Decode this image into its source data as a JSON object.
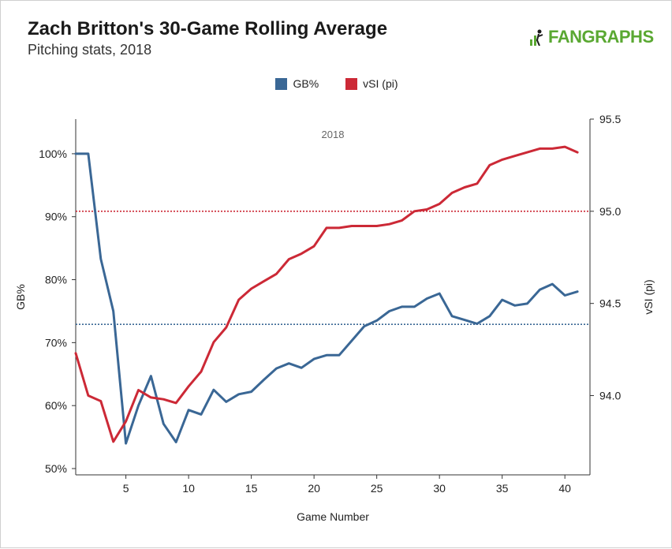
{
  "title": "Zach Britton's 30-Game Rolling Average",
  "subtitle": "Pitching stats, 2018",
  "brand": "FANGRAPHS",
  "logo_icon": "fangraphs-logo-icon",
  "legend": [
    {
      "label": "GB%",
      "color": "#3a6795"
    },
    {
      "label": "vSI (pi)",
      "color": "#cc2936"
    }
  ],
  "chart_data": {
    "type": "line",
    "panel_label": "2018",
    "xlabel": "Game Number",
    "ylabel_left": "GB%",
    "ylabel_right": "vSI (pi)",
    "xlim": [
      1,
      42
    ],
    "xticks": [
      5,
      10,
      15,
      20,
      25,
      30,
      35,
      40
    ],
    "ylim_left": [
      0.49,
      1.055
    ],
    "yticks_left": [
      {
        "value": 0.5,
        "label": "50%"
      },
      {
        "value": 0.6,
        "label": "60%"
      },
      {
        "value": 0.7,
        "label": "70%"
      },
      {
        "value": 0.8,
        "label": "80%"
      },
      {
        "value": 0.9,
        "label": "90%"
      },
      {
        "value": 1.0,
        "label": "100%"
      }
    ],
    "ylim_right": [
      93.57,
      95.5
    ],
    "yticks_right": [
      {
        "value": 94.0,
        "label": "94.0"
      },
      {
        "value": 94.5,
        "label": "94.5"
      },
      {
        "value": 95.0,
        "label": "95.0"
      },
      {
        "value": 95.5,
        "label": "95.5"
      }
    ],
    "reference_lines": [
      {
        "axis": "left",
        "value": 0.729,
        "color": "#3a6795"
      },
      {
        "axis": "right",
        "value": 95.0,
        "color": "#cc2936"
      }
    ],
    "series": [
      {
        "name": "GB%",
        "axis": "left",
        "color": "#3a6795",
        "x": [
          1,
          2,
          3,
          4,
          5,
          6,
          7,
          8,
          9,
          10,
          11,
          12,
          13,
          14,
          15,
          16,
          17,
          18,
          19,
          20,
          21,
          22,
          23,
          24,
          25,
          26,
          27,
          28,
          29,
          30,
          31,
          32,
          33,
          34,
          35,
          36,
          37,
          38,
          39,
          40,
          41
        ],
        "values": [
          1.0,
          1.0,
          0.833,
          0.75,
          0.54,
          0.6,
          0.647,
          0.571,
          0.542,
          0.593,
          0.586,
          0.625,
          0.606,
          0.618,
          0.622,
          0.641,
          0.659,
          0.667,
          0.66,
          0.674,
          0.68,
          0.68,
          0.703,
          0.726,
          0.735,
          0.75,
          0.757,
          0.757,
          0.77,
          0.778,
          0.742,
          0.736,
          0.73,
          0.742,
          0.768,
          0.759,
          0.762,
          0.784,
          0.793,
          0.775,
          0.781
        ]
      },
      {
        "name": "vSI (pi)",
        "axis": "right",
        "color": "#cc2936",
        "x": [
          1,
          2,
          3,
          4,
          5,
          6,
          7,
          8,
          9,
          10,
          11,
          12,
          13,
          14,
          15,
          16,
          17,
          18,
          19,
          20,
          21,
          22,
          23,
          24,
          25,
          26,
          27,
          28,
          29,
          30,
          31,
          32,
          33,
          34,
          35,
          36,
          37,
          38,
          39,
          40,
          41
        ],
        "values": [
          94.23,
          94.0,
          93.97,
          93.75,
          93.86,
          94.03,
          93.99,
          93.98,
          93.96,
          94.05,
          94.13,
          94.29,
          94.37,
          94.52,
          94.58,
          94.62,
          94.66,
          94.74,
          94.77,
          94.81,
          94.91,
          94.91,
          94.92,
          94.92,
          94.92,
          94.93,
          94.95,
          95.0,
          95.01,
          95.04,
          95.1,
          95.13,
          95.15,
          95.25,
          95.28,
          95.3,
          95.32,
          95.34,
          95.34,
          95.35,
          95.32
        ]
      }
    ]
  }
}
